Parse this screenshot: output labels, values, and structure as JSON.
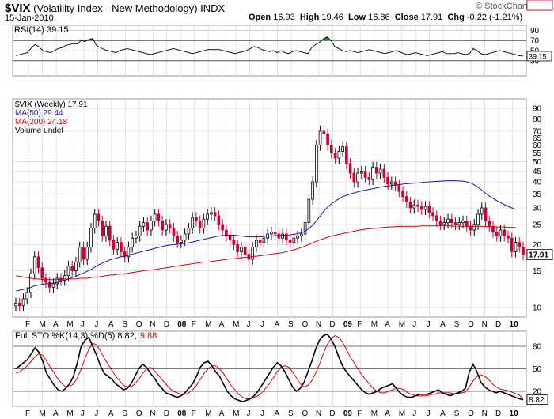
{
  "header": {
    "symbol": "$VIX",
    "name": "(Volatility Index - New Methodology)",
    "exchange": "INDX",
    "date": "15-Jan-2010",
    "open_label": "Open",
    "open": "16.93",
    "high_label": "High",
    "high": "19.46",
    "low_label": "Low",
    "low": "16.86",
    "close_label": "Close",
    "close": "17.91",
    "chg_label": "Chg",
    "chg": "-0.22 (-1.21%)",
    "brand": "© StockCharts.com"
  },
  "colors": {
    "up": "#000000",
    "down": "#cc0033",
    "ma50": "#1a1aa0",
    "ma200": "#d40000",
    "grid": "#dcdcdc",
    "rsi_fill": "#3c7a3c",
    "sto_d": "#e00000",
    "sto_k": "#000000"
  },
  "chart_data": [
    {
      "type": "line",
      "panel": "RSI",
      "legend": "RSI(14) 39.15",
      "ylim": [
        0,
        100
      ],
      "yticks": [
        30,
        50,
        70,
        90
      ],
      "overbought": 70,
      "oversold": 30,
      "last_value_label": "39.15",
      "values": [
        40,
        42,
        44,
        46,
        55,
        62,
        58,
        50,
        48,
        46,
        50,
        54,
        56,
        60,
        62,
        64,
        63,
        70,
        68,
        72,
        74,
        60,
        56,
        52,
        50,
        48,
        46,
        50,
        52,
        54,
        52,
        50,
        48,
        46,
        44,
        42,
        44,
        46,
        48,
        50,
        52,
        54,
        52,
        50,
        48,
        46,
        44,
        46,
        48,
        50,
        52,
        52,
        52,
        52,
        50,
        48,
        46,
        44,
        46,
        48,
        50,
        54,
        58,
        56,
        52,
        50,
        48,
        50,
        46,
        50,
        46,
        44,
        48,
        50,
        48,
        46,
        44,
        56,
        62,
        66,
        73,
        77,
        70,
        58,
        54,
        50,
        48,
        50,
        48,
        46,
        48,
        50,
        52,
        50,
        48,
        46,
        44,
        46,
        48,
        50,
        47,
        44,
        42,
        44,
        46,
        44,
        42,
        40,
        42,
        44,
        46,
        48,
        44,
        44,
        44,
        46,
        44,
        42,
        44,
        54,
        50,
        44,
        42,
        44,
        46,
        48,
        50,
        48,
        46,
        44,
        42,
        40,
        39.15
      ]
    },
    {
      "type": "candlestick",
      "panel": "price",
      "log_scale": true,
      "ylim": [
        9,
        100
      ],
      "yticks": [
        10,
        15,
        20,
        25,
        30,
        35,
        40,
        45,
        50,
        55,
        60,
        65,
        70,
        80,
        90
      ],
      "legend": [
        "$VIX (Weekly) 17.91",
        "MA(50) 29.44",
        "MA(200) 24.18",
        "Volume undef"
      ],
      "last_value_labels": {
        "close": "17.91",
        "ma50": "29.44",
        "ma200": "24.18"
      },
      "x_labels": [
        "F",
        "M",
        "A",
        "M",
        "J",
        "J",
        "A",
        "S",
        "O",
        "N",
        "D",
        "08",
        "F",
        "M",
        "A",
        "M",
        "J",
        "J",
        "A",
        "S",
        "O",
        "N",
        "D",
        "09",
        "F",
        "M",
        "A",
        "M",
        "J",
        "J",
        "A",
        "S",
        "O",
        "N",
        "D",
        "10"
      ],
      "close": [
        10.5,
        10.2,
        11.0,
        11.8,
        14.5,
        17.5,
        15.5,
        13.8,
        13.2,
        12.5,
        13.0,
        13.8,
        13.5,
        14.2,
        15.8,
        15.0,
        16.5,
        19.5,
        17.0,
        19.5,
        24.0,
        28.0,
        26.0,
        22.0,
        24.5,
        21.0,
        19.0,
        20.5,
        18.5,
        17.5,
        19.5,
        21.5,
        22.0,
        24.5,
        25.5,
        23.5,
        26.0,
        28.0,
        26.0,
        23.5,
        25.0,
        24.0,
        22.0,
        20.5,
        21.0,
        22.5,
        24.0,
        27.0,
        26.0,
        24.0,
        26.5,
        28.0,
        28.5,
        27.5,
        25.0,
        23.5,
        22.0,
        21.0,
        20.0,
        18.5,
        19.5,
        18.0,
        17.0,
        19.5,
        21.0,
        20.5,
        21.5,
        22.5,
        23.0,
        22.5,
        21.5,
        22.5,
        21.0,
        20.5,
        21.5,
        22.0,
        22.5,
        25.5,
        33.0,
        40.0,
        60.0,
        70.0,
        68.0,
        60.0,
        55.0,
        52.0,
        56.0,
        59.0,
        49.0,
        44.0,
        40.0,
        44.0,
        45.0,
        42.0,
        41.0,
        47.0,
        44.0,
        46.0,
        42.0,
        39.0,
        40.0,
        38.5,
        36.0,
        34.0,
        32.0,
        30.0,
        31.0,
        30.5,
        29.5,
        30.5,
        28.5,
        27.5,
        26.0,
        25.0,
        25.5,
        26.5,
        25.5,
        25.0,
        25.5,
        26.0,
        24.5,
        23.5,
        25.0,
        28.0,
        30.0,
        26.0,
        24.5,
        23.0,
        22.0,
        23.5,
        22.0,
        21.5,
        18.5,
        20.5,
        19.5,
        17.91
      ],
      "ma50": [
        12.0,
        12.1,
        12.2,
        12.3,
        12.5,
        12.7,
        12.8,
        12.9,
        13.0,
        13.0,
        13.1,
        13.2,
        13.3,
        13.5,
        13.7,
        13.9,
        14.1,
        14.4,
        14.6,
        14.9,
        15.2,
        15.6,
        16.0,
        16.3,
        16.6,
        16.9,
        17.1,
        17.3,
        17.5,
        17.6,
        17.8,
        18.0,
        18.2,
        18.4,
        18.6,
        18.8,
        19.0,
        19.2,
        19.4,
        19.6,
        19.8,
        19.9,
        20.0,
        20.1,
        20.2,
        20.3,
        20.4,
        20.6,
        20.8,
        21.0,
        21.2,
        21.4,
        21.6,
        21.8,
        22.0,
        22.1,
        22.2,
        22.2,
        22.2,
        22.1,
        22.0,
        21.9,
        21.8,
        21.8,
        21.8,
        21.8,
        21.9,
        22.0,
        22.0,
        22.1,
        22.1,
        22.2,
        22.2,
        22.3,
        22.4,
        22.6,
        22.8,
        23.2,
        23.9,
        24.8,
        26.0,
        27.5,
        29.0,
        30.3,
        31.4,
        32.3,
        33.2,
        34.0,
        34.5,
        35.0,
        35.4,
        35.8,
        36.2,
        36.5,
        36.8,
        37.1,
        37.4,
        37.7,
        38.0,
        38.2,
        38.4,
        38.6,
        38.8,
        39.0,
        39.2,
        39.3,
        39.4,
        39.5,
        39.7,
        39.9,
        40.0,
        40.1,
        40.2,
        40.3,
        40.4,
        40.5,
        40.5,
        40.5,
        40.4,
        40.3,
        40.0,
        39.5,
        38.7,
        37.7,
        36.5,
        35.3,
        34.2,
        33.3,
        32.5,
        31.8,
        31.1,
        30.5,
        30.0,
        29.44
      ],
      "ma200": [
        14.2,
        14.1,
        14.0,
        13.9,
        13.8,
        13.7,
        13.7,
        13.6,
        13.6,
        13.6,
        13.6,
        13.6,
        13.6,
        13.7,
        13.7,
        13.7,
        13.7,
        13.8,
        13.8,
        13.8,
        13.9,
        14.0,
        14.0,
        14.1,
        14.2,
        14.3,
        14.3,
        14.4,
        14.5,
        14.5,
        14.6,
        14.7,
        14.8,
        14.9,
        15.0,
        15.1,
        15.1,
        15.2,
        15.3,
        15.4,
        15.5,
        15.6,
        15.7,
        15.8,
        15.9,
        16.0,
        16.1,
        16.2,
        16.3,
        16.4,
        16.5,
        16.5,
        16.6,
        16.7,
        16.8,
        16.9,
        17.0,
        17.1,
        17.1,
        17.2,
        17.3,
        17.4,
        17.4,
        17.5,
        17.6,
        17.7,
        17.8,
        17.9,
        18.0,
        18.1,
        18.2,
        18.3,
        18.5,
        18.7,
        18.9,
        19.1,
        19.4,
        19.7,
        20.0,
        20.4,
        20.8,
        21.1,
        21.4,
        21.7,
        22.0,
        22.2,
        22.4,
        22.6,
        22.8,
        23.0,
        23.2,
        23.4,
        23.6,
        23.7,
        23.8,
        23.9,
        24.0,
        24.1,
        24.2,
        24.3,
        24.3,
        24.4,
        24.4,
        24.5,
        24.5,
        24.5,
        24.5,
        24.5,
        24.6,
        24.6,
        24.6,
        24.6,
        24.6,
        24.6,
        24.6,
        24.6,
        24.6,
        24.5,
        24.5,
        24.5,
        24.5,
        24.5,
        24.5,
        24.5,
        24.5,
        24.4,
        24.4,
        24.4,
        24.3,
        24.3,
        24.3,
        24.2,
        24.2,
        24.18
      ]
    },
    {
      "type": "line",
      "panel": "Full STO",
      "legend": "Full STO %K(14,3) %D(5) 8.82, 9.88",
      "legend_k": "Full STO %K(14,3) %D(5) 8.82,",
      "legend_d": "9.88",
      "ylim": [
        0,
        100
      ],
      "yticks": [
        20,
        50,
        80
      ],
      "last_value_label": "8.82",
      "k": [
        50,
        54,
        58,
        62,
        70,
        78,
        72,
        60,
        44,
        36,
        28,
        22,
        20,
        24,
        30,
        40,
        58,
        80,
        88,
        92,
        80,
        68,
        54,
        44,
        40,
        36,
        30,
        26,
        22,
        24,
        30,
        40,
        50,
        56,
        52,
        44,
        38,
        30,
        24,
        18,
        16,
        14,
        12,
        14,
        18,
        24,
        30,
        40,
        52,
        58,
        60,
        54,
        46,
        40,
        30,
        20,
        14,
        10,
        8,
        6,
        8,
        10,
        14,
        20,
        28,
        36,
        44,
        52,
        58,
        54,
        46,
        36,
        26,
        20,
        24,
        32,
        46,
        60,
        76,
        88,
        94,
        96,
        90,
        80,
        66,
        54,
        46,
        40,
        34,
        28,
        22,
        18,
        16,
        18,
        20,
        24,
        26,
        28,
        30,
        24,
        18,
        14,
        12,
        12,
        14,
        16,
        16,
        16,
        18,
        20,
        22,
        18,
        16,
        14,
        16,
        18,
        20,
        24,
        46,
        56,
        46,
        32,
        26,
        22,
        20,
        18,
        20,
        18,
        16,
        14,
        12,
        10,
        8.82
      ],
      "d": [
        44,
        46,
        50,
        54,
        60,
        66,
        70,
        68,
        60,
        52,
        44,
        36,
        30,
        26,
        26,
        30,
        38,
        50,
        64,
        76,
        84,
        82,
        74,
        64,
        56,
        48,
        40,
        34,
        28,
        26,
        26,
        30,
        36,
        44,
        50,
        52,
        48,
        42,
        36,
        30,
        24,
        20,
        18,
        16,
        16,
        18,
        22,
        28,
        36,
        44,
        50,
        54,
        54,
        50,
        44,
        36,
        28,
        22,
        16,
        12,
        10,
        10,
        12,
        14,
        18,
        24,
        30,
        38,
        46,
        52,
        54,
        52,
        46,
        38,
        30,
        26,
        28,
        34,
        44,
        56,
        70,
        82,
        90,
        94,
        92,
        86,
        76,
        66,
        58,
        50,
        42,
        36,
        30,
        24,
        20,
        18,
        18,
        20,
        22,
        24,
        24,
        22,
        18,
        16,
        14,
        14,
        14,
        14,
        16,
        16,
        18,
        18,
        18,
        18,
        17,
        17,
        18,
        19,
        26,
        34,
        40,
        42,
        40,
        36,
        30,
        26,
        23,
        22,
        21,
        19,
        17,
        15,
        9.88
      ]
    }
  ]
}
